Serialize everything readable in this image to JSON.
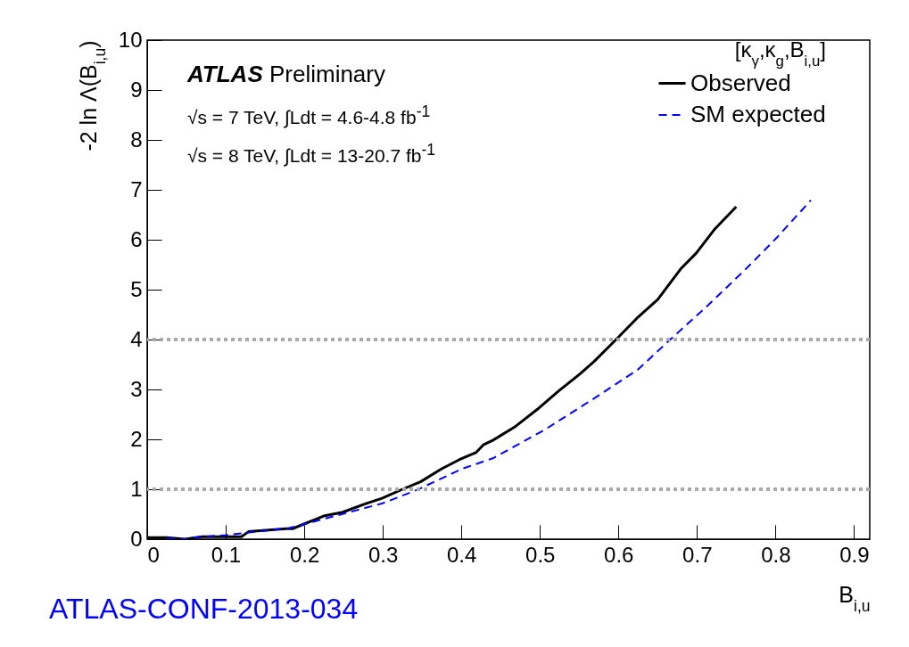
{
  "chart_data": {
    "type": "line",
    "xlabel": "B$_{i,u}$",
    "ylabel": "-2 ln Λ(B$_{i,u}$)",
    "legend_title": "[κ$_{γ}$,κ$_{g}$,B$_{i,u}$]",
    "annotations": [
      "ATLAS Preliminary",
      "√s = 7 TeV, ∫Ldt = 4.6-4.8 fb$^{-1}$",
      "√s = 8 TeV, ∫Ldt = 13-20.7 fb$^{-1}$",
      "ATLAS-CONF-2013-034"
    ],
    "xlim": [
      0,
      0.92
    ],
    "ylim": [
      0,
      10
    ],
    "xticks": [
      0,
      0.1,
      0.2,
      0.3,
      0.4,
      0.5,
      0.6,
      0.7,
      0.8,
      0.9
    ],
    "yticks": [
      0,
      1,
      2,
      3,
      4,
      5,
      6,
      7,
      8,
      9,
      10
    ],
    "grid": false,
    "legend": "top right",
    "ref_lines": [
      {
        "axis": "y",
        "value": 1,
        "color": "#aaaaaa",
        "line_style": "dotted"
      },
      {
        "axis": "y",
        "value": 4,
        "color": "#aaaaaa",
        "line_style": "dotted"
      }
    ],
    "series": [
      {
        "name": "Observed",
        "color": "#000000",
        "line_style": "solid",
        "x": [
          0,
          0.025,
          0.048,
          0.07,
          0.12,
          0.129,
          0.177,
          0.185,
          0.226,
          0.249,
          0.276,
          0.299,
          0.325,
          0.348,
          0.375,
          0.397,
          0.419,
          0.428,
          0.44,
          0.469,
          0.499,
          0.524,
          0.551,
          0.569,
          0.597,
          0.625,
          0.65,
          0.679,
          0.699,
          0.723,
          0.75
        ],
        "values": [
          0.03,
          0.03,
          0,
          0.05,
          0.05,
          0.15,
          0.21,
          0.21,
          0.47,
          0.54,
          0.7,
          0.82,
          1.0,
          1.15,
          1.41,
          1.59,
          1.74,
          1.89,
          1.98,
          2.26,
          2.63,
          2.97,
          3.31,
          3.56,
          4.0,
          4.45,
          4.8,
          5.41,
          5.73,
          6.22,
          6.66
        ]
      },
      {
        "name": "SM expected",
        "color": "#0000ff",
        "line_style": "dashed",
        "x": [
          0.025,
          0.048,
          0.07,
          0.1,
          0.15,
          0.18,
          0.2,
          0.25,
          0.3,
          0.344,
          0.401,
          0.44,
          0.506,
          0.569,
          0.625,
          0.666,
          0.715,
          0.762,
          0.801,
          0.845
        ],
        "values": [
          0.02,
          0,
          0.05,
          0.08,
          0.17,
          0.22,
          0.3,
          0.51,
          0.72,
          0.99,
          1.41,
          1.62,
          2.19,
          2.82,
          3.4,
          4.0,
          4.7,
          5.41,
          6.03,
          6.79
        ]
      }
    ]
  }
}
